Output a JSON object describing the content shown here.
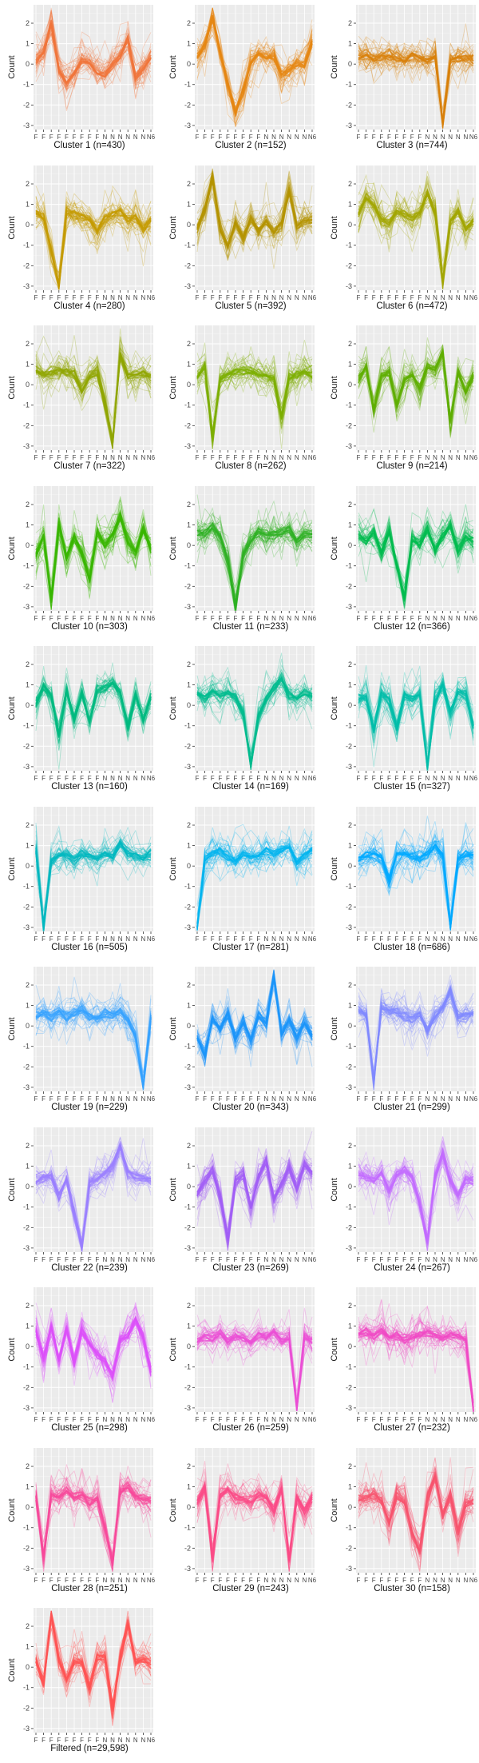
{
  "chart_data": {
    "type": "line",
    "y_label": "Count",
    "y_ticks": [
      2,
      1,
      0,
      -1,
      -2,
      -3
    ],
    "ylim": [
      -3.2,
      2.9
    ],
    "x_tick_labels": [
      "F",
      "F",
      "F",
      "F",
      "F",
      "F",
      "F",
      "F",
      "F",
      "N",
      "N",
      "N",
      "N",
      "N",
      "N",
      "N"
    ],
    "x_tick_label_last": "6",
    "panels": [
      {
        "caption": "Cluster 1 (n=430)",
        "color": "#F0743A",
        "profile": [
          0.2,
          0.6,
          2.0,
          -0.3,
          -0.9,
          -0.5,
          0.2,
          0.1,
          -0.4,
          -0.6,
          0.0,
          0.4,
          1.2,
          -0.6,
          -0.2,
          0.4
        ]
      },
      {
        "caption": "Cluster 2 (n=152)",
        "color": "#E68613",
        "profile": [
          0.4,
          0.9,
          2.3,
          0.6,
          -1.0,
          -2.4,
          -1.3,
          0.1,
          0.5,
          0.3,
          0.4,
          -0.5,
          -0.3,
          0.0,
          -0.1,
          1.1
        ]
      },
      {
        "caption": "Cluster 3 (n=744)",
        "color": "#D9800A",
        "profile": [
          0.3,
          0.4,
          0.2,
          0.3,
          0.4,
          0.3,
          0.2,
          0.4,
          0.3,
          0.2,
          0.4,
          -2.9,
          0.2,
          0.3,
          0.3,
          0.2
        ]
      },
      {
        "caption": "Cluster 4 (n=280)",
        "color": "#C49A00",
        "profile": [
          0.6,
          0.4,
          -1.3,
          -3.0,
          0.6,
          0.5,
          0.4,
          0.2,
          -0.3,
          0.3,
          0.5,
          0.7,
          0.3,
          0.4,
          -0.2,
          0.2
        ]
      },
      {
        "caption": "Cluster 5 (n=392)",
        "color": "#B49400",
        "profile": [
          -0.2,
          0.8,
          2.3,
          -0.2,
          -1.0,
          0.1,
          -0.6,
          0.3,
          -0.3,
          0.2,
          -0.4,
          0.1,
          1.7,
          -0.1,
          0.2,
          0.2
        ]
      },
      {
        "caption": "Cluster 6 (n=472)",
        "color": "#A3A500",
        "profile": [
          0.5,
          1.4,
          1.0,
          0.3,
          0.1,
          0.7,
          0.5,
          0.3,
          0.6,
          1.5,
          0.6,
          -2.8,
          0.2,
          0.6,
          -0.2,
          0.2
        ]
      },
      {
        "caption": "Cluster 7 (n=322)",
        "color": "#8FA500",
        "profile": [
          0.7,
          0.5,
          0.6,
          0.7,
          0.6,
          0.5,
          -0.3,
          0.4,
          0.6,
          -0.9,
          -2.8,
          1.5,
          0.4,
          0.5,
          0.6,
          0.4
        ]
      },
      {
        "caption": "Cluster 8 (n=262)",
        "color": "#7CAE00",
        "profile": [
          0.4,
          0.9,
          -2.6,
          0.3,
          0.5,
          0.6,
          0.7,
          0.6,
          0.5,
          0.4,
          0.3,
          -1.6,
          0.4,
          0.5,
          0.6,
          0.4
        ]
      },
      {
        "caption": "Cluster 9 (n=214)",
        "color": "#5FAE00",
        "profile": [
          0.2,
          0.8,
          -1.2,
          0.4,
          0.6,
          -1.0,
          0.3,
          0.5,
          -0.2,
          0.9,
          0.7,
          1.6,
          -1.8,
          0.6,
          -0.4,
          0.5
        ]
      },
      {
        "caption": "Cluster 10 (n=303)",
        "color": "#39B600",
        "profile": [
          -0.4,
          0.5,
          -2.6,
          1.0,
          -0.6,
          0.4,
          -0.4,
          -1.6,
          0.6,
          0.0,
          0.5,
          1.4,
          0.2,
          -0.3,
          0.8,
          -0.2
        ]
      },
      {
        "caption": "Cluster 11 (n=233)",
        "color": "#2DB022",
        "profile": [
          0.5,
          0.6,
          0.9,
          0.4,
          -0.8,
          -3.0,
          -0.5,
          0.3,
          0.6,
          0.5,
          0.6,
          0.7,
          0.8,
          0.2,
          0.6,
          0.5
        ]
      },
      {
        "caption": "Cluster 12 (n=366)",
        "color": "#00BB4E",
        "profile": [
          0.5,
          0.2,
          0.6,
          -0.4,
          0.7,
          -1.0,
          -2.5,
          0.4,
          0.1,
          0.8,
          -0.2,
          0.5,
          1.0,
          -0.3,
          0.4,
          0.2
        ]
      },
      {
        "caption": "Cluster 13 (n=160)",
        "color": "#00BA80",
        "profile": [
          0.0,
          0.9,
          0.4,
          -1.4,
          0.8,
          -0.7,
          0.6,
          -0.8,
          0.7,
          0.9,
          1.1,
          0.6,
          -1.1,
          0.5,
          -0.7,
          0.4
        ]
      },
      {
        "caption": "Cluster 14 (n=169)",
        "color": "#00BC8E",
        "profile": [
          0.6,
          0.4,
          0.7,
          0.5,
          0.6,
          0.4,
          -0.4,
          -2.9,
          -0.6,
          0.3,
          0.8,
          1.3,
          0.5,
          0.3,
          0.6,
          0.4
        ]
      },
      {
        "caption": "Cluster 15 (n=327)",
        "color": "#00BDAA",
        "profile": [
          0.3,
          0.4,
          -1.2,
          0.6,
          0.2,
          -1.1,
          0.5,
          0.3,
          0.5,
          -3.0,
          0.2,
          1.0,
          -0.4,
          0.7,
          0.5,
          -1.0
        ]
      },
      {
        "caption": "Cluster 16 (n=505)",
        "color": "#00B8C0",
        "profile": [
          0.8,
          -3.0,
          0.2,
          0.6,
          0.5,
          0.3,
          0.6,
          0.5,
          0.4,
          0.6,
          0.5,
          1.1,
          0.6,
          0.5,
          0.4,
          0.6
        ]
      },
      {
        "caption": "Cluster 17 (n=281)",
        "color": "#00B4EF",
        "profile": [
          -3.0,
          0.3,
          0.6,
          0.7,
          0.5,
          0.2,
          0.6,
          0.4,
          0.5,
          0.7,
          0.6,
          0.8,
          0.9,
          0.2,
          0.6,
          0.8
        ]
      },
      {
        "caption": "Cluster 18 (n=686)",
        "color": "#00A9FF",
        "profile": [
          0.3,
          0.5,
          0.6,
          0.4,
          -0.8,
          0.5,
          0.6,
          0.5,
          0.4,
          0.6,
          1.0,
          0.5,
          -2.9,
          0.3,
          0.6,
          0.5
        ]
      },
      {
        "caption": "Cluster 19 (n=229)",
        "color": "#35A2FF",
        "profile": [
          0.5,
          0.6,
          0.4,
          0.7,
          0.5,
          0.6,
          0.8,
          0.5,
          0.4,
          0.6,
          0.5,
          0.7,
          0.3,
          -0.5,
          -3.0,
          0.4
        ]
      },
      {
        "caption": "Cluster 20 (n=343)",
        "color": "#1C95FA",
        "profile": [
          -0.6,
          -1.4,
          0.3,
          -0.2,
          0.6,
          -0.6,
          0.2,
          -0.7,
          0.5,
          0.1,
          2.5,
          -0.4,
          0.3,
          -0.5,
          0.2,
          -0.5
        ]
      },
      {
        "caption": "Cluster 21 (n=299)",
        "color": "#7F88FF",
        "profile": [
          0.7,
          0.6,
          -2.7,
          0.9,
          0.8,
          0.7,
          0.5,
          0.3,
          0.6,
          -0.2,
          0.5,
          0.9,
          1.7,
          0.4,
          0.5,
          0.6
        ]
      },
      {
        "caption": "Cluster 22 (n=239)",
        "color": "#9A80FF",
        "profile": [
          0.3,
          0.4,
          0.5,
          -0.5,
          0.3,
          -1.3,
          -3.0,
          0.2,
          0.4,
          0.6,
          1.0,
          2.0,
          0.7,
          0.5,
          0.4,
          0.3
        ]
      },
      {
        "caption": "Cluster 23 (n=269)",
        "color": "#A25EF5",
        "profile": [
          -0.4,
          0.3,
          0.8,
          -0.6,
          -2.6,
          0.3,
          0.6,
          -1.0,
          0.5,
          1.2,
          -0.6,
          0.1,
          0.9,
          -0.1,
          1.1,
          0.7
        ]
      },
      {
        "caption": "Cluster 24 (n=267)",
        "color": "#C36BFF",
        "profile": [
          0.6,
          0.5,
          0.3,
          0.6,
          -0.2,
          0.5,
          0.8,
          0.4,
          -0.8,
          -2.7,
          0.5,
          1.6,
          0.3,
          -0.4,
          0.4,
          0.3
        ]
      },
      {
        "caption": "Cluster 25 (n=298)",
        "color": "#DC50FA",
        "profile": [
          0.8,
          -0.6,
          1.0,
          -0.7,
          0.9,
          -0.8,
          0.8,
          0.1,
          -0.4,
          -0.7,
          -1.4,
          0.3,
          0.6,
          1.3,
          0.4,
          -1.2
        ]
      },
      {
        "caption": "Cluster 26 (n=259)",
        "color": "#EB4FD6",
        "profile": [
          0.3,
          0.5,
          0.4,
          0.6,
          0.3,
          0.5,
          0.4,
          0.2,
          0.6,
          0.5,
          0.7,
          0.3,
          0.4,
          -3.0,
          0.5,
          0.3
        ]
      },
      {
        "caption": "Cluster 27 (n=232)",
        "color": "#F049C4",
        "profile": [
          0.6,
          0.7,
          0.5,
          0.8,
          0.4,
          0.6,
          0.3,
          0.5,
          0.6,
          0.7,
          0.5,
          0.4,
          0.6,
          0.5,
          0.3,
          -3.0
        ]
      },
      {
        "caption": "Cluster 28 (n=251)",
        "color": "#F8489A",
        "profile": [
          0.5,
          -2.4,
          0.6,
          0.5,
          0.8,
          0.5,
          0.6,
          0.3,
          0.4,
          -1.0,
          -2.7,
          0.8,
          1.0,
          0.5,
          0.4,
          0.3
        ]
      },
      {
        "caption": "Cluster 29 (n=243)",
        "color": "#FB4A86",
        "profile": [
          0.3,
          0.9,
          -2.5,
          0.6,
          0.9,
          0.5,
          0.4,
          0.3,
          0.6,
          0.5,
          -0.2,
          0.9,
          -2.6,
          0.5,
          -0.2,
          0.4
        ]
      },
      {
        "caption": "Cluster 30 (n=158)",
        "color": "#F8536E",
        "profile": [
          0.4,
          0.5,
          0.6,
          0.3,
          -0.8,
          0.6,
          0.3,
          -1.2,
          -2.1,
          0.5,
          1.5,
          -0.4,
          0.6,
          -1.2,
          0.1,
          0.3
        ]
      },
      {
        "caption": "Filtered (n=29,598)",
        "color": "#FF5454",
        "profile": [
          0.3,
          -0.8,
          2.6,
          0.4,
          -0.6,
          0.3,
          0.2,
          -1.0,
          0.5,
          0.6,
          -2.0,
          0.4,
          2.1,
          0.3,
          0.4,
          0.2
        ]
      }
    ]
  }
}
